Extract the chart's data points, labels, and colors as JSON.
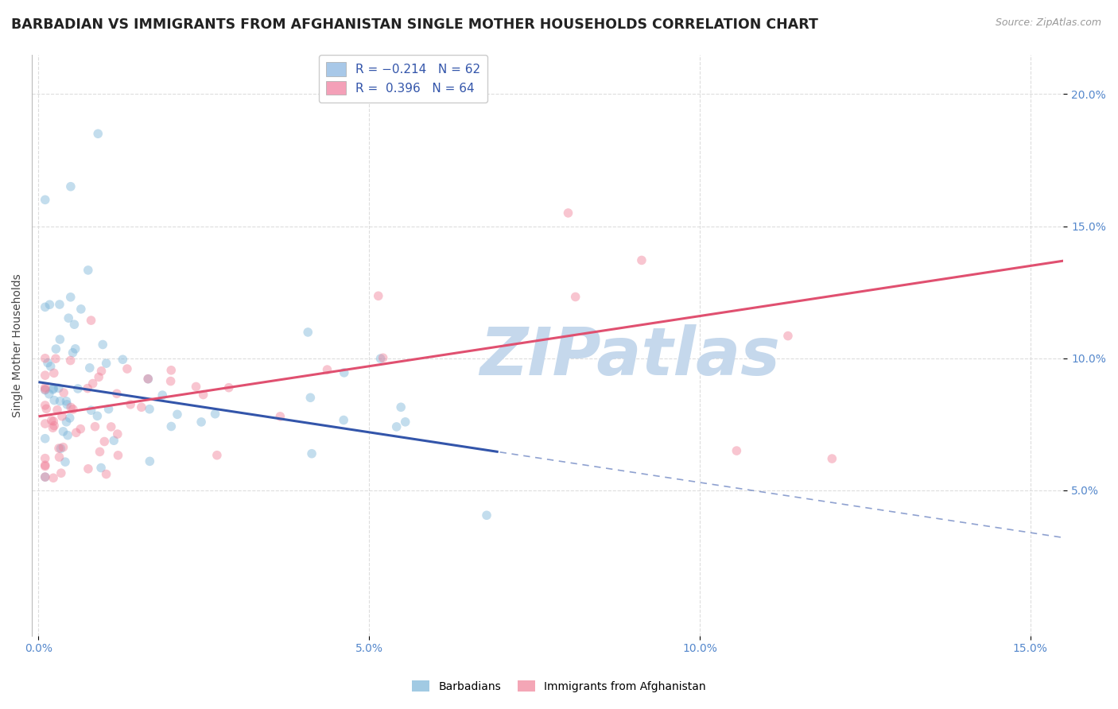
{
  "title": "BARBADIAN VS IMMIGRANTS FROM AFGHANISTAN SINGLE MOTHER HOUSEHOLDS CORRELATION CHART",
  "source": "Source: ZipAtlas.com",
  "ylabel": "Single Mother Households",
  "xlim": [
    -0.001,
    0.155
  ],
  "ylim": [
    -0.005,
    0.215
  ],
  "xticks": [
    0.0,
    0.05,
    0.1,
    0.15
  ],
  "xticklabels": [
    "0.0%",
    "5.0%",
    "10.0%",
    "15.0%"
  ],
  "yticks": [
    0.05,
    0.1,
    0.15,
    0.2
  ],
  "yticklabels": [
    "5.0%",
    "10.0%",
    "15.0%",
    "20.0%"
  ],
  "legend_entries": [
    {
      "label": "R = −0.214   N = 62",
      "color": "#a8c8e8"
    },
    {
      "label": "R =  0.396   N = 64",
      "color": "#f4a0b8"
    }
  ],
  "watermark": "ZIPatlas",
  "barbadians_color": "#7ab4d8",
  "afghanistan_color": "#f08098",
  "background_color": "#ffffff",
  "grid_color": "#dddddd",
  "dot_size": 70,
  "dot_alpha": 0.45,
  "title_fontsize": 12.5,
  "axis_label_fontsize": 10,
  "tick_fontsize": 10,
  "legend_fontsize": 11,
  "watermark_color": "#c5d8ec",
  "watermark_fontsize": 60,
  "blue_line_color": "#3355aa",
  "pink_line_color": "#e05070",
  "line_width": 2.2,
  "blue_intercept": 0.091,
  "blue_slope": -0.38,
  "pink_intercept": 0.078,
  "pink_slope": 0.38
}
